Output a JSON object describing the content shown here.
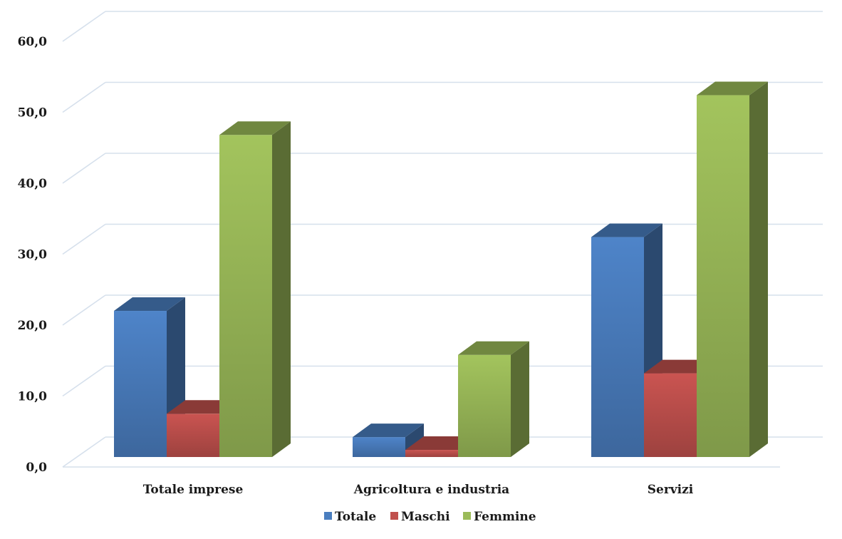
{
  "chart_data": {
    "type": "bar",
    "style": "3d-clustered-column",
    "categories": [
      "Totale imprese",
      "Agricoltura e industria",
      "Servizi"
    ],
    "series": [
      {
        "name": "Totale",
        "values": [
          20.6,
          2.8,
          31.0
        ],
        "color": "#4a7ebf"
      },
      {
        "name": "Maschi",
        "values": [
          6.1,
          1.0,
          11.8
        ],
        "color": "#c0504d"
      },
      {
        "name": "Femmine",
        "values": [
          45.4,
          14.4,
          51.0
        ],
        "color": "#9bbb59"
      }
    ],
    "ylim": [
      0,
      60
    ],
    "yticks": [
      "0,0",
      "10,0",
      "20,0",
      "30,0",
      "40,0",
      "50,0",
      "60,0"
    ],
    "grid": true,
    "legend": "bottom",
    "title": "",
    "xlabel": "",
    "ylabel": ""
  }
}
